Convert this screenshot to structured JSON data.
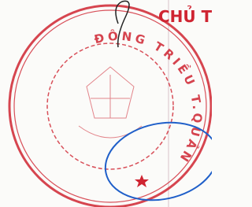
{
  "heading": "CHỦ T",
  "stamp": {
    "ring_text": "ĐÔNG TRIỀU T.QUẢNG NINH"
  }
}
